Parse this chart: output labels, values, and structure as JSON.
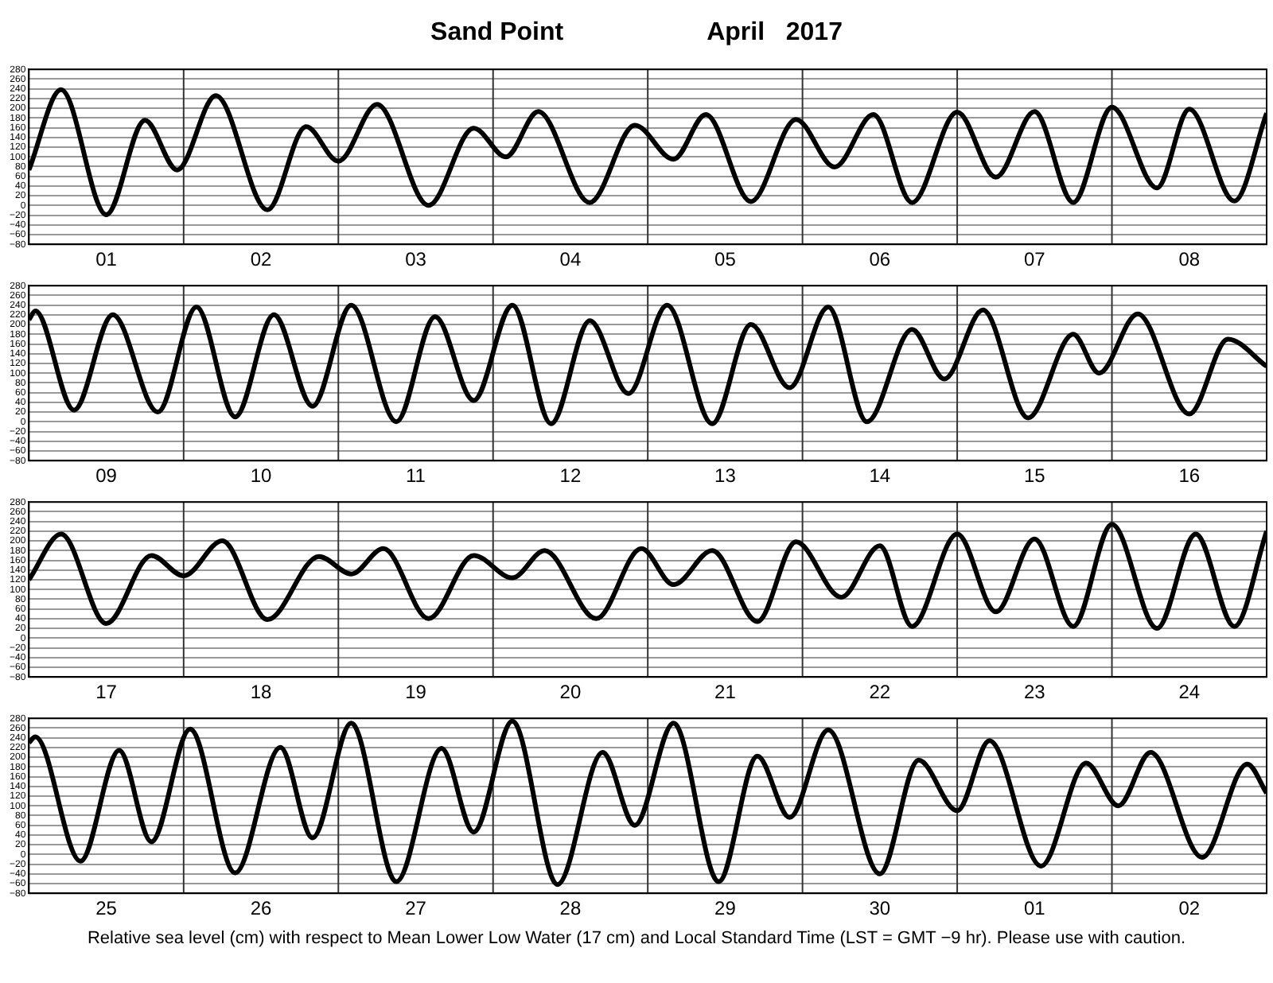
{
  "chart_data": [
    {
      "type": "line",
      "title": "Sand Point",
      "subtitle": "April   2017",
      "xlim": [
        "2017-04-01",
        "2017-04-09"
      ],
      "xticks": [
        {
          "value": "2017-04-01T12:00",
          "label": "01"
        },
        {
          "value": "2017-04-02T12:00",
          "label": "02"
        },
        {
          "value": "2017-04-03T12:00",
          "label": "03"
        },
        {
          "value": "2017-04-04T12:00",
          "label": "04"
        },
        {
          "value": "2017-04-05T12:00",
          "label": "05"
        },
        {
          "value": "2017-04-06T12:00",
          "label": "06"
        },
        {
          "value": "2017-04-07T12:00",
          "label": "07"
        },
        {
          "value": "2017-04-08T12:00",
          "label": "08"
        }
      ],
      "ylim": [
        -80,
        280
      ],
      "yticks": [
        -80,
        -60,
        -40,
        -20,
        0,
        20,
        40,
        60,
        80,
        100,
        120,
        140,
        160,
        180,
        200,
        220,
        240,
        260,
        280
      ],
      "grid": "y",
      "ref_lines": [
        {
          "axis": "x",
          "value": "2017-04-02",
          "color": "#333333"
        },
        {
          "axis": "x",
          "value": "2017-04-03",
          "color": "#333333"
        },
        {
          "axis": "x",
          "value": "2017-04-04",
          "color": "#333333"
        },
        {
          "axis": "x",
          "value": "2017-04-05",
          "color": "#333333"
        },
        {
          "axis": "x",
          "value": "2017-04-06",
          "color": "#333333"
        },
        {
          "axis": "x",
          "value": "2017-04-07",
          "color": "#333333"
        },
        {
          "axis": "x",
          "value": "2017-04-08",
          "color": "#333333"
        }
      ],
      "x": [
        "2017-04-01T00:00",
        "2017-04-01T05:00",
        "2017-04-01T12:00",
        "2017-04-01T18:00",
        "2017-04-01T23:00",
        "2017-04-02T05:00",
        "2017-04-02T13:00",
        "2017-04-02T19:00",
        "2017-04-03T00:00",
        "2017-04-03T06:00",
        "2017-04-03T14:00",
        "2017-04-03T21:00",
        "2017-04-04T02:00",
        "2017-04-04T07:00",
        "2017-04-04T15:00",
        "2017-04-04T22:00",
        "2017-04-05T04:00",
        "2017-04-05T09:00",
        "2017-04-05T16:00",
        "2017-04-05T23:00",
        "2017-04-06T05:00",
        "2017-04-06T11:00",
        "2017-04-06T17:00",
        "2017-04-07T00:00",
        "2017-04-07T06:00",
        "2017-04-07T12:00",
        "2017-04-07T18:00",
        "2017-04-08T00:00",
        "2017-04-08T07:00",
        "2017-04-08T12:00",
        "2017-04-08T19:00",
        "2017-04-09T00:00"
      ],
      "series": [
        {
          "color": "#000000",
          "values": [
            73,
            238,
            -19,
            175,
            73,
            226,
            -9,
            162,
            91,
            208,
            0,
            159,
            100,
            193,
            6,
            165,
            95,
            187,
            8,
            177,
            79,
            187,
            6,
            192,
            58,
            193,
            6,
            202,
            36,
            198,
            9,
            190
          ]
        }
      ]
    },
    {
      "type": "line",
      "xlim": [
        "2017-04-09",
        "2017-04-17"
      ],
      "xticks": [
        {
          "value": "2017-04-09T12:00",
          "label": "09"
        },
        {
          "value": "2017-04-10T12:00",
          "label": "10"
        },
        {
          "value": "2017-04-11T12:00",
          "label": "11"
        },
        {
          "value": "2017-04-12T12:00",
          "label": "12"
        },
        {
          "value": "2017-04-13T12:00",
          "label": "13"
        },
        {
          "value": "2017-04-14T12:00",
          "label": "14"
        },
        {
          "value": "2017-04-15T12:00",
          "label": "15"
        },
        {
          "value": "2017-04-16T12:00",
          "label": "16"
        }
      ],
      "ylim": [
        -80,
        280
      ],
      "yticks": [
        -80,
        -60,
        -40,
        -20,
        0,
        20,
        40,
        60,
        80,
        100,
        120,
        140,
        160,
        180,
        200,
        220,
        240,
        260,
        280
      ],
      "grid": "y",
      "ref_lines": [
        {
          "axis": "x",
          "value": "2017-04-10",
          "color": "#333333"
        },
        {
          "axis": "x",
          "value": "2017-04-11",
          "color": "#333333"
        },
        {
          "axis": "x",
          "value": "2017-04-12",
          "color": "#333333"
        },
        {
          "axis": "x",
          "value": "2017-04-13",
          "color": "#333333"
        },
        {
          "axis": "x",
          "value": "2017-04-14",
          "color": "#333333"
        },
        {
          "axis": "x",
          "value": "2017-04-15",
          "color": "#333333"
        },
        {
          "axis": "x",
          "value": "2017-04-16",
          "color": "#333333"
        }
      ],
      "x": [
        "2017-04-09T00:00",
        "2017-04-09T01:00",
        "2017-04-09T07:00",
        "2017-04-09T13:00",
        "2017-04-09T20:00",
        "2017-04-10T02:00",
        "2017-04-10T08:00",
        "2017-04-10T14:00",
        "2017-04-10T20:00",
        "2017-04-11T02:00",
        "2017-04-11T09:00",
        "2017-04-11T15:00",
        "2017-04-11T21:00",
        "2017-04-12T03:00",
        "2017-04-12T09:00",
        "2017-04-12T15:00",
        "2017-04-12T21:00",
        "2017-04-13T03:00",
        "2017-04-13T10:00",
        "2017-04-13T16:00",
        "2017-04-13T22:00",
        "2017-04-14T04:00",
        "2017-04-14T10:00",
        "2017-04-14T17:00",
        "2017-04-14T22:00",
        "2017-04-15T04:00",
        "2017-04-15T11:00",
        "2017-04-15T18:00",
        "2017-04-15T22:00",
        "2017-04-16T04:00",
        "2017-04-16T12:00",
        "2017-04-16T18:00",
        "2017-04-17T00:00"
      ],
      "series": [
        {
          "color": "#000000",
          "values": [
            210,
            228,
            24,
            220,
            20,
            236,
            10,
            220,
            32,
            240,
            0,
            216,
            44,
            240,
            -4,
            208,
            58,
            240,
            -4,
            200,
            70,
            236,
            0,
            190,
            88,
            230,
            8,
            180,
            100,
            222,
            16,
            170,
            114
          ]
        }
      ]
    },
    {
      "type": "line",
      "xlim": [
        "2017-04-17",
        "2017-04-25"
      ],
      "xticks": [
        {
          "value": "2017-04-17T12:00",
          "label": "17"
        },
        {
          "value": "2017-04-18T12:00",
          "label": "18"
        },
        {
          "value": "2017-04-19T12:00",
          "label": "19"
        },
        {
          "value": "2017-04-20T12:00",
          "label": "20"
        },
        {
          "value": "2017-04-21T12:00",
          "label": "21"
        },
        {
          "value": "2017-04-22T12:00",
          "label": "22"
        },
        {
          "value": "2017-04-23T12:00",
          "label": "23"
        },
        {
          "value": "2017-04-24T12:00",
          "label": "24"
        }
      ],
      "ylim": [
        -80,
        280
      ],
      "yticks": [
        -80,
        -60,
        -40,
        -20,
        0,
        20,
        40,
        60,
        80,
        100,
        120,
        140,
        160,
        180,
        200,
        220,
        240,
        260,
        280
      ],
      "grid": "y",
      "ref_lines": [
        {
          "axis": "x",
          "value": "2017-04-18",
          "color": "#333333"
        },
        {
          "axis": "x",
          "value": "2017-04-19",
          "color": "#333333"
        },
        {
          "axis": "x",
          "value": "2017-04-20",
          "color": "#333333"
        },
        {
          "axis": "x",
          "value": "2017-04-21",
          "color": "#333333"
        },
        {
          "axis": "x",
          "value": "2017-04-22",
          "color": "#333333"
        },
        {
          "axis": "x",
          "value": "2017-04-23",
          "color": "#333333"
        },
        {
          "axis": "x",
          "value": "2017-04-24",
          "color": "#333333"
        }
      ],
      "x": [
        "2017-04-17T00:00",
        "2017-04-17T05:00",
        "2017-04-17T12:00",
        "2017-04-17T19:00",
        "2017-04-18T00:00",
        "2017-04-18T06:00",
        "2017-04-18T13:00",
        "2017-04-18T21:00",
        "2017-04-19T02:00",
        "2017-04-19T07:00",
        "2017-04-19T14:00",
        "2017-04-19T21:00",
        "2017-04-20T03:00",
        "2017-04-20T08:00",
        "2017-04-20T16:00",
        "2017-04-20T23:00",
        "2017-04-21T04:00",
        "2017-04-21T10:00",
        "2017-04-21T17:00",
        "2017-04-21T23:00",
        "2017-04-22T06:00",
        "2017-04-22T12:00",
        "2017-04-22T17:00",
        "2017-04-23T00:00",
        "2017-04-23T06:00",
        "2017-04-23T12:00",
        "2017-04-23T18:00",
        "2017-04-24T00:00",
        "2017-04-24T07:00",
        "2017-04-24T13:00",
        "2017-04-24T19:00",
        "2017-04-25T00:00"
      ],
      "series": [
        {
          "color": "#000000",
          "values": [
            120,
            214,
            30,
            170,
            128,
            200,
            38,
            168,
            132,
            184,
            40,
            170,
            124,
            180,
            40,
            184,
            110,
            180,
            34,
            198,
            84,
            190,
            24,
            214,
            54,
            204,
            24,
            234,
            20,
            214,
            24,
            220
          ]
        }
      ]
    },
    {
      "type": "line",
      "xlim": [
        "2017-04-25",
        "2017-05-03"
      ],
      "xticks": [
        {
          "value": "2017-04-25T12:00",
          "label": "25"
        },
        {
          "value": "2017-04-26T12:00",
          "label": "26"
        },
        {
          "value": "2017-04-27T12:00",
          "label": "27"
        },
        {
          "value": "2017-04-28T12:00",
          "label": "28"
        },
        {
          "value": "2017-04-29T12:00",
          "label": "29"
        },
        {
          "value": "2017-04-30T12:00",
          "label": "30"
        },
        {
          "value": "2017-05-01T12:00",
          "label": "01"
        },
        {
          "value": "2017-05-02T12:00",
          "label": "02"
        }
      ],
      "ylim": [
        -80,
        280
      ],
      "yticks": [
        -80,
        -60,
        -40,
        -20,
        0,
        20,
        40,
        60,
        80,
        100,
        120,
        140,
        160,
        180,
        200,
        220,
        240,
        260,
        280
      ],
      "grid": "y",
      "ref_lines": [
        {
          "axis": "x",
          "value": "2017-04-26",
          "color": "#333333"
        },
        {
          "axis": "x",
          "value": "2017-04-27",
          "color": "#333333"
        },
        {
          "axis": "x",
          "value": "2017-04-28",
          "color": "#333333"
        },
        {
          "axis": "x",
          "value": "2017-04-29",
          "color": "#333333"
        },
        {
          "axis": "x",
          "value": "2017-04-30",
          "color": "#333333"
        },
        {
          "axis": "x",
          "value": "2017-05-01",
          "color": "#333333"
        },
        {
          "axis": "x",
          "value": "2017-05-02",
          "color": "#333333"
        }
      ],
      "x": [
        "2017-04-25T00:00",
        "2017-04-25T01:00",
        "2017-04-25T08:00",
        "2017-04-25T14:00",
        "2017-04-25T19:00",
        "2017-04-26T01:00",
        "2017-04-26T08:00",
        "2017-04-26T15:00",
        "2017-04-26T20:00",
        "2017-04-27T02:00",
        "2017-04-27T09:00",
        "2017-04-27T16:00",
        "2017-04-27T21:00",
        "2017-04-28T03:00",
        "2017-04-28T10:00",
        "2017-04-28T17:00",
        "2017-04-28T22:00",
        "2017-04-29T04:00",
        "2017-04-29T11:00",
        "2017-04-29T17:00",
        "2017-04-29T22:00",
        "2017-04-30T04:00",
        "2017-04-30T12:00",
        "2017-04-30T18:00",
        "2017-05-01T00:00",
        "2017-05-01T05:00",
        "2017-05-01T13:00",
        "2017-05-01T20:00",
        "2017-05-02T01:00",
        "2017-05-02T06:00",
        "2017-05-02T14:00",
        "2017-05-02T21:00",
        "2017-05-03T00:00"
      ],
      "series": [
        {
          "color": "#000000",
          "values": [
            230,
            242,
            -14,
            214,
            26,
            258,
            -38,
            220,
            34,
            270,
            -56,
            218,
            46,
            274,
            -62,
            210,
            60,
            270,
            -56,
            202,
            76,
            256,
            -40,
            194,
            90,
            234,
            -24,
            188,
            100,
            210,
            -6,
            186,
            126
          ]
        }
      ],
      "annotations": [
        "Relative sea level (cm) with respect to Mean Lower Low Water (17 cm) and Local Standard Time (LST = GMT −9 hr). Please use with caution."
      ]
    }
  ]
}
